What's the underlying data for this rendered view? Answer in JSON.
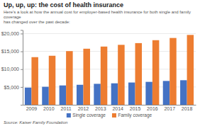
{
  "chart_data": {
    "type": "bar",
    "title": "Up, up, up: the cost of health insurance",
    "subtitle": "Here’s a look at how the annual cost for employer-based health insurance for both single and family coverage\nhas changed over the past decade:",
    "source": "Source: Kaiser Family Foundation",
    "categories": [
      "2009",
      "2010",
      "2011",
      "2012",
      "2013",
      "2014",
      "2015",
      "2016",
      "2017",
      "2018"
    ],
    "series": [
      {
        "name": "Single coverage",
        "color": "#4472c4",
        "values": [
          4824,
          5049,
          5429,
          5615,
          5884,
          6025,
          6251,
          6435,
          6690,
          6896
        ]
      },
      {
        "name": "Family coverage",
        "color": "#ed7d31",
        "values": [
          13375,
          13770,
          15073,
          15745,
          16351,
          16834,
          17322,
          18142,
          18764,
          19616
        ]
      }
    ],
    "ylim": [
      0,
      21000
    ],
    "yticks": [
      {
        "value": 5000,
        "label": "$5,000"
      },
      {
        "value": 10000,
        "label": "$10,000"
      },
      {
        "value": 15000,
        "label": "$15,000"
      },
      {
        "value": 20000,
        "label": "$20,000"
      }
    ],
    "grid": true,
    "legend": "bottom"
  }
}
